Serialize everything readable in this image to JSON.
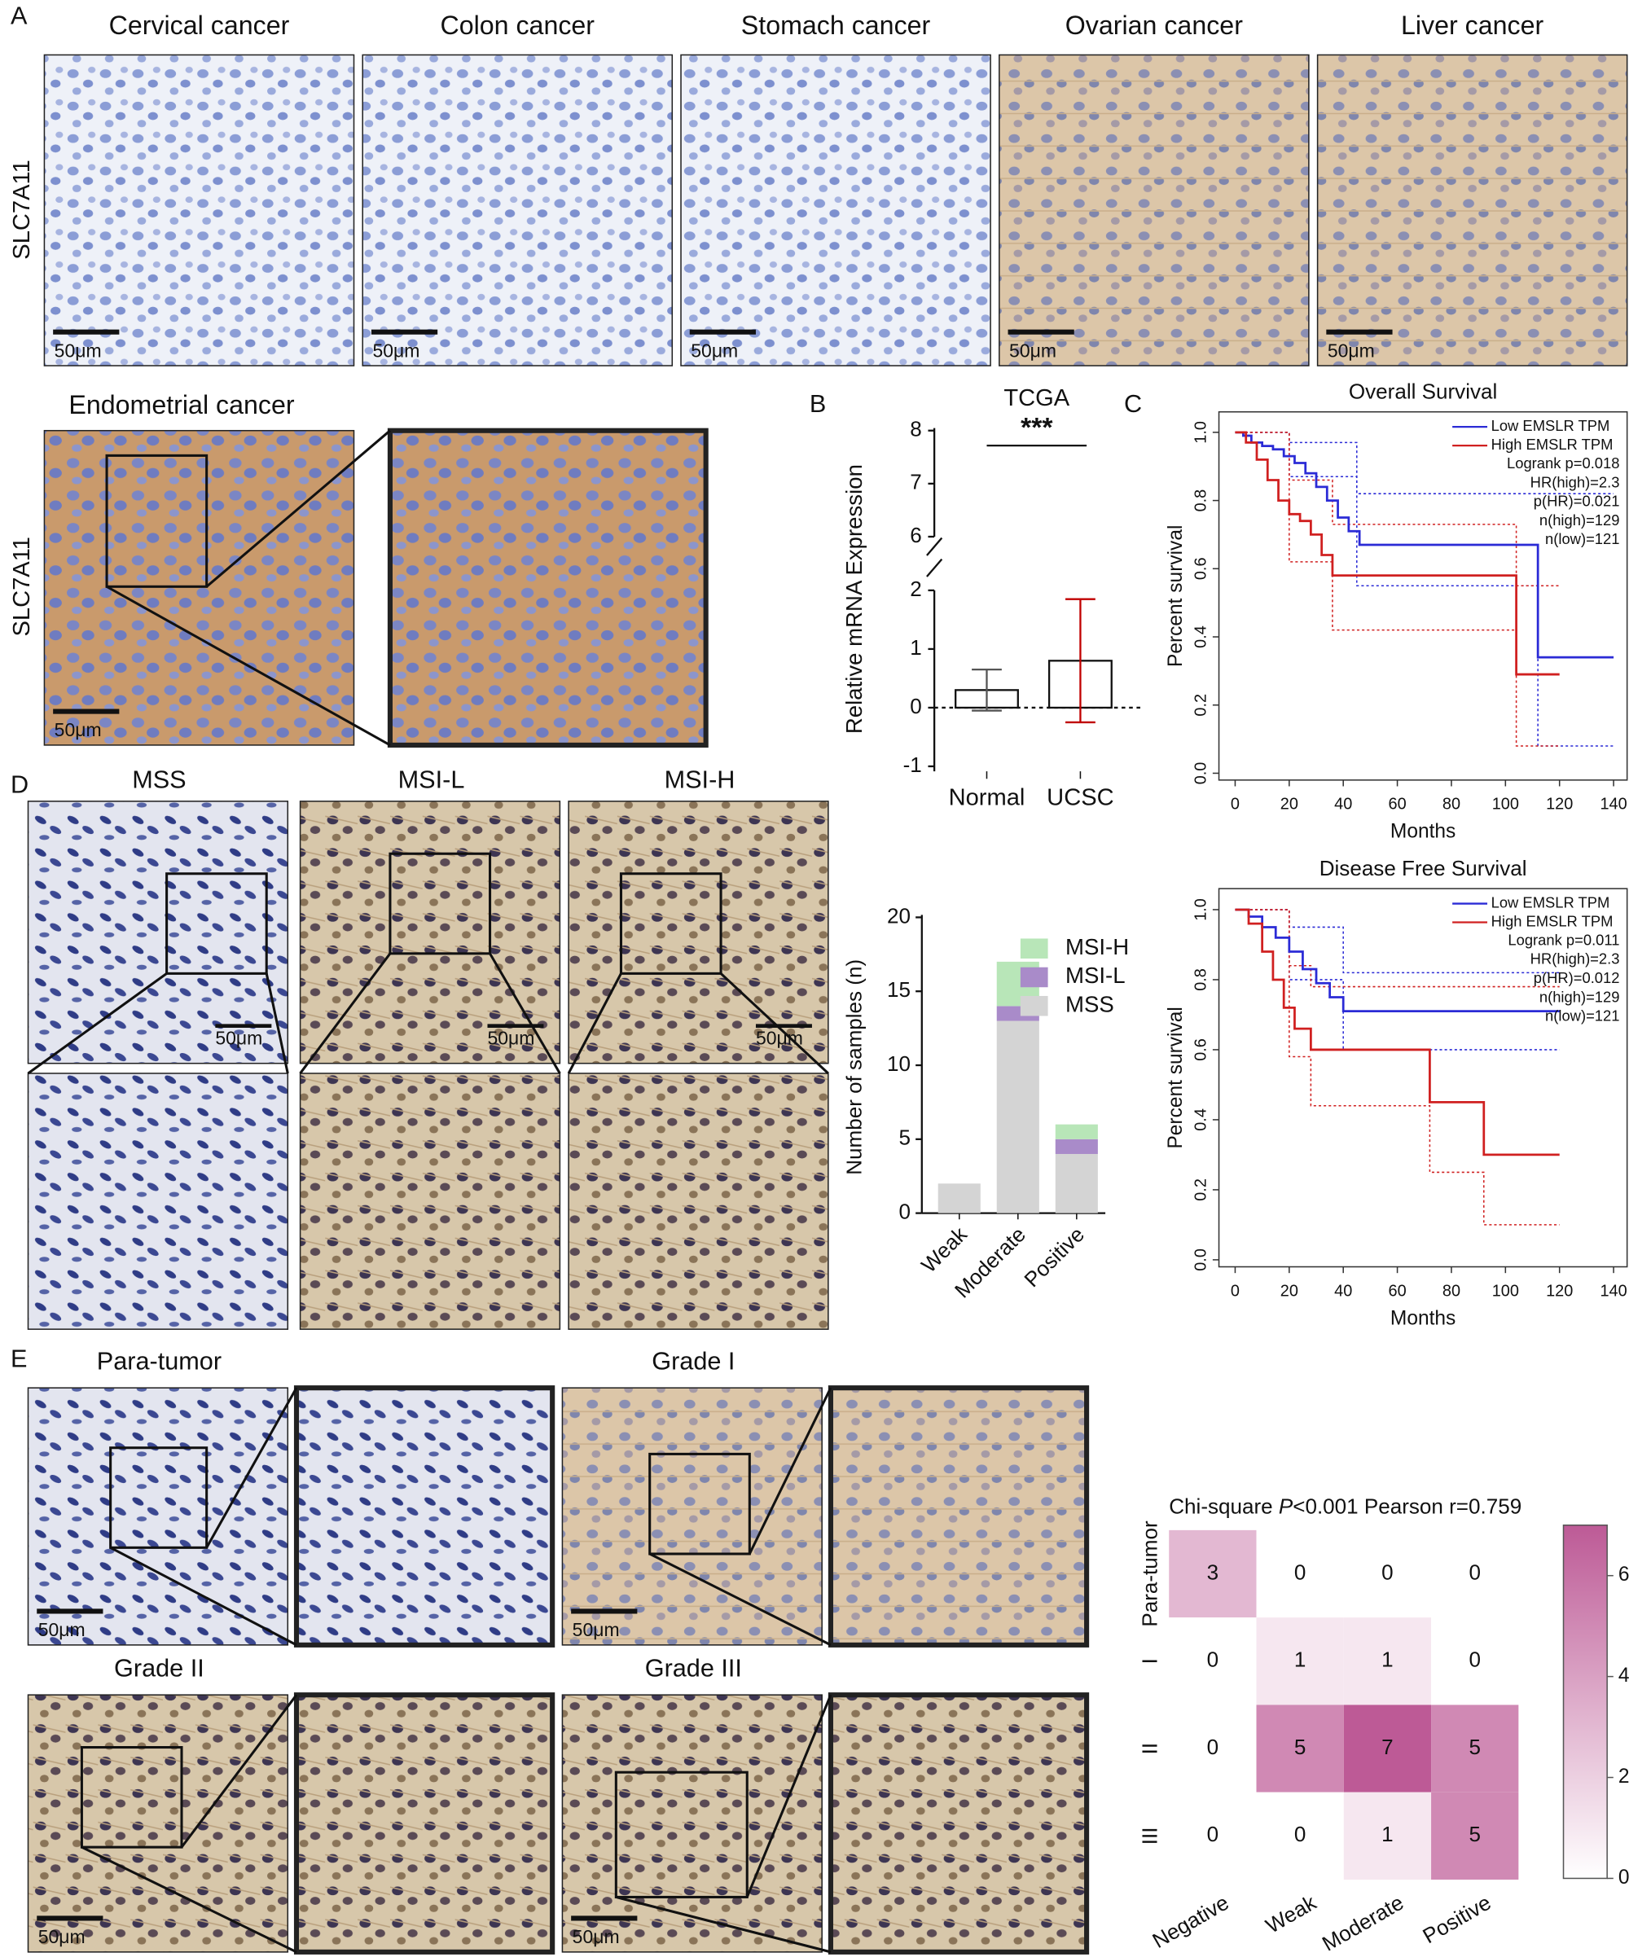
{
  "figure": {
    "panel_labels": [
      "A",
      "B",
      "C",
      "D",
      "E"
    ],
    "panel_a": {
      "titles": [
        "Cervical cancer",
        "Colon cancer",
        "Stomach cancer",
        "Ovarian cancer",
        "Liver cancer"
      ],
      "row_label": "SLC7A11",
      "scale_bars": [
        "50μm",
        "50μm",
        "50μm",
        "50μm",
        "50μm"
      ]
    },
    "endometrial": {
      "title": "Endometrial cancer",
      "row_label": "SLC7A11",
      "scale_bar": "50μm"
    },
    "panel_d": {
      "titles": [
        "MSS",
        "MSI-L",
        "MSI-H"
      ],
      "scale_bars": [
        "50μm",
        "50μm",
        "50μm"
      ]
    },
    "panel_e": {
      "titles": [
        "Para-tumor",
        "Grade I",
        "Grade II",
        "Grade III"
      ],
      "scale_bars": [
        "50μm",
        "50μm",
        "50μm",
        "50μm"
      ]
    }
  },
  "chart_data": [
    {
      "type": "bar",
      "title": "TCGA",
      "annotation": "***",
      "ylabel": "Relative mRNA Expression",
      "categories": [
        "Normal",
        "UCSC"
      ],
      "values": [
        0.3,
        0.8
      ],
      "errors": [
        0.35,
        1.05
      ],
      "color": "#ffffff",
      "point_colors": [
        "#555555",
        "#c00000"
      ],
      "ylim": [
        -1,
        8
      ],
      "axis_break": [
        2,
        6
      ],
      "yticks": [
        -1,
        0,
        1,
        2,
        6,
        7,
        8
      ]
    },
    {
      "type": "survival",
      "title": "Overall Survival",
      "xlabel": "Months",
      "ylabel": "Percent survival",
      "xlim": [
        -6,
        145
      ],
      "ylim": [
        -0.02,
        1.06
      ],
      "xticks": [
        0,
        20,
        40,
        60,
        80,
        100,
        120,
        140
      ],
      "yticks": [
        {
          "value": 0,
          "label": "0.0"
        },
        0.2,
        0.4,
        0.6,
        0.8,
        {
          "value": 1,
          "label": "1.0"
        }
      ],
      "series": [
        {
          "name": "Low EMSLR TPM",
          "color": "#2b2bd6",
          "x": [
            0,
            3,
            6,
            10,
            14,
            18,
            22,
            26,
            30,
            34,
            38,
            42,
            46,
            112,
            140
          ],
          "values": [
            1.0,
            0.99,
            0.97,
            0.96,
            0.95,
            0.93,
            0.91,
            0.88,
            0.84,
            0.8,
            0.75,
            0.71,
            0.67,
            0.34,
            0.34
          ]
        },
        {
          "name": "High EMSLR TPM",
          "color": "#d02020",
          "x": [
            0,
            4,
            8,
            12,
            16,
            20,
            24,
            28,
            32,
            36,
            104,
            120
          ],
          "values": [
            1.0,
            0.97,
            0.92,
            0.86,
            0.8,
            0.76,
            0.74,
            0.7,
            0.64,
            0.58,
            0.29,
            0.29
          ]
        }
      ],
      "ci": [
        {
          "color": "#2b2bd6",
          "x": [
            0,
            20,
            45,
            112,
            140
          ],
          "values": [
            1.0,
            0.97,
            0.82,
            0.82,
            0.82
          ]
        },
        {
          "color": "#2b2bd6",
          "x": [
            0,
            20,
            45,
            112,
            140
          ],
          "values": [
            1.0,
            0.87,
            0.55,
            0.08,
            0.08
          ]
        },
        {
          "color": "#d02020",
          "x": [
            0,
            20,
            36,
            104,
            120
          ],
          "values": [
            1.0,
            0.86,
            0.73,
            0.55,
            0.55
          ]
        },
        {
          "color": "#d02020",
          "x": [
            0,
            20,
            36,
            104,
            120
          ],
          "values": [
            1.0,
            0.62,
            0.42,
            0.08,
            0.08
          ]
        }
      ],
      "annotations": [
        "Logrank p=0.018",
        "HR(high)=2.3",
        "p(HR)=0.021",
        "n(high)=129",
        "n(low)=121"
      ]
    },
    {
      "type": "survival",
      "title": "Disease Free Survival",
      "xlabel": "Months",
      "ylabel": "Percent survival",
      "xlim": [
        -6,
        145
      ],
      "ylim": [
        -0.02,
        1.06
      ],
      "xticks": [
        0,
        20,
        40,
        60,
        80,
        100,
        120,
        140
      ],
      "yticks": [
        {
          "value": 0,
          "label": "0.0"
        },
        0.2,
        0.4,
        0.6,
        0.8,
        {
          "value": 1,
          "label": "1.0"
        }
      ],
      "series": [
        {
          "name": "Low EMSLR TPM",
          "color": "#2b2bd6",
          "x": [
            0,
            5,
            10,
            15,
            20,
            25,
            30,
            35,
            40,
            120
          ],
          "values": [
            1.0,
            0.98,
            0.95,
            0.92,
            0.88,
            0.83,
            0.79,
            0.75,
            0.71,
            0.71
          ]
        },
        {
          "name": "High EMSLR TPM",
          "color": "#d02020",
          "x": [
            0,
            5,
            10,
            14,
            18,
            22,
            28,
            72,
            92,
            120
          ],
          "values": [
            1.0,
            0.96,
            0.88,
            0.8,
            0.72,
            0.66,
            0.6,
            0.45,
            0.3,
            0.3
          ]
        }
      ],
      "ci": [
        {
          "color": "#2b2bd6",
          "x": [
            0,
            20,
            40,
            120
          ],
          "values": [
            1.0,
            0.95,
            0.82,
            0.82
          ]
        },
        {
          "color": "#2b2bd6",
          "x": [
            0,
            20,
            40,
            120
          ],
          "values": [
            1.0,
            0.8,
            0.6,
            0.6
          ]
        },
        {
          "color": "#d02020",
          "x": [
            0,
            20,
            28,
            120
          ],
          "values": [
            1.0,
            0.84,
            0.78,
            0.78
          ]
        },
        {
          "color": "#d02020",
          "x": [
            0,
            20,
            28,
            72,
            92,
            120
          ],
          "values": [
            1.0,
            0.58,
            0.44,
            0.25,
            0.1,
            0.1
          ]
        }
      ],
      "annotations": [
        "Logrank p=0.011",
        "HR(high)=2.3",
        "p(HR)=0.012",
        "n(high)=129",
        "n(low)=121"
      ]
    },
    {
      "type": "stacked_bar",
      "ylabel": "Number of samples (n)",
      "categories": [
        "Weak",
        "Moderate",
        "Positive"
      ],
      "series": [
        {
          "name": "MSS",
          "color": "#d4d4d4",
          "values": [
            2,
            13,
            4
          ]
        },
        {
          "name": "MSI-L",
          "color": "#a98bc9",
          "values": [
            0,
            1,
            1
          ]
        },
        {
          "name": "MSI-H",
          "color": "#b8e6b8",
          "values": [
            0,
            3,
            1
          ]
        }
      ],
      "ylim": [
        0,
        20
      ],
      "yticks": [
        0,
        5,
        10,
        15,
        20
      ]
    },
    {
      "type": "heatmap",
      "title_parts": [
        "Chi-square ",
        "P",
        "<0.001 Pearson r=0.759"
      ],
      "rows": [
        "Para-tumor",
        "I",
        "II",
        "III"
      ],
      "columns": [
        "Negative",
        "Weak",
        "Moderate",
        "Positive"
      ],
      "values": [
        [
          3,
          0,
          0,
          0
        ],
        [
          0,
          1,
          1,
          0
        ],
        [
          0,
          5,
          7,
          5
        ],
        [
          0,
          0,
          1,
          5
        ]
      ],
      "color_min": "#ffffff",
      "color_max": "#bd5a96",
      "clim": [
        0,
        7
      ],
      "colorbar_ticks": [
        0,
        2,
        4,
        6
      ]
    }
  ]
}
